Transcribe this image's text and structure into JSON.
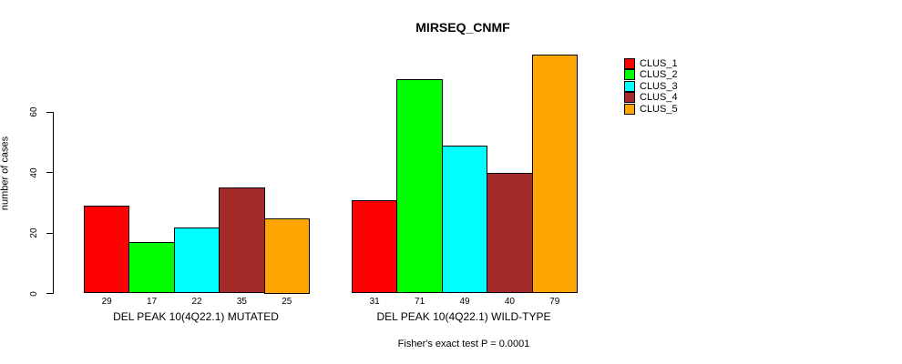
{
  "chart_data": {
    "type": "bar",
    "title": "MIRSEQ_CNMF",
    "ylabel": "number of cases",
    "xlabel": "",
    "yticks": [
      0,
      20,
      40,
      60
    ],
    "ylim": [
      0,
      80
    ],
    "grid": false,
    "legend_position": "right-inside",
    "bar_value_labels_shown": true,
    "annotation": "Fisher's exact test P = 0.0001",
    "series": [
      {
        "name": "CLUS_1",
        "color": "#FF0000"
      },
      {
        "name": "CLUS_2",
        "color": "#00FF00"
      },
      {
        "name": "CLUS_3",
        "color": "#00FFFF"
      },
      {
        "name": "CLUS_4",
        "color": "#A52A2A"
      },
      {
        "name": "CLUS_5",
        "color": "#FFA500"
      }
    ],
    "groups": [
      {
        "label": "DEL PEAK 10(4Q22.1) MUTATED",
        "values": [
          29,
          17,
          22,
          35,
          25
        ]
      },
      {
        "label": "DEL PEAK 10(4Q22.1) WILD-TYPE",
        "values": [
          31,
          71,
          49,
          40,
          79
        ]
      }
    ]
  },
  "colors": {
    "background": "#FFFFFF",
    "axis": "#000000",
    "text": "#000000"
  }
}
